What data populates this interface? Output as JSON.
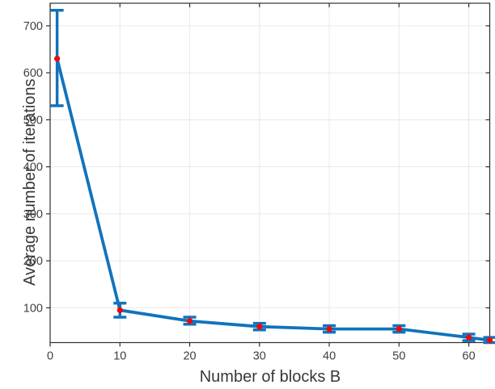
{
  "chart_data": {
    "type": "line",
    "subtype": "errorbar",
    "title": "",
    "xlabel": "Number of blocks B",
    "ylabel": "Average number of iterations",
    "x": [
      1,
      10,
      20,
      30,
      40,
      50,
      60,
      63
    ],
    "y": [
      630,
      95,
      72,
      60,
      55,
      55,
      37,
      31
    ],
    "yerr_low": [
      530,
      80,
      65,
      53,
      48,
      48,
      30,
      26
    ],
    "yerr_high": [
      733,
      110,
      80,
      67,
      62,
      62,
      44,
      37
    ],
    "xticks": [
      0,
      10,
      20,
      30,
      40,
      50,
      60
    ],
    "yticks": [
      100,
      200,
      300,
      400,
      500,
      600,
      700
    ],
    "xtick_labels": [
      "0",
      "10",
      "20",
      "30",
      "40",
      "50",
      "60"
    ],
    "ytick_labels": [
      "100",
      "200",
      "300",
      "400",
      "500",
      "600",
      "700"
    ],
    "xlim": [
      0,
      63
    ],
    "ylim": [
      26,
      748
    ],
    "grid": true,
    "legend_position": "none",
    "box": true,
    "colors": {
      "line": "#1173bc",
      "errorbar": "#1173bc",
      "marker": "#fb0006",
      "grid": "#e8e8e8",
      "axis_box": "#2f2f2f",
      "tick_label": "#3f3f3f",
      "axis_label": "#383838",
      "background": "#ffffff"
    }
  }
}
